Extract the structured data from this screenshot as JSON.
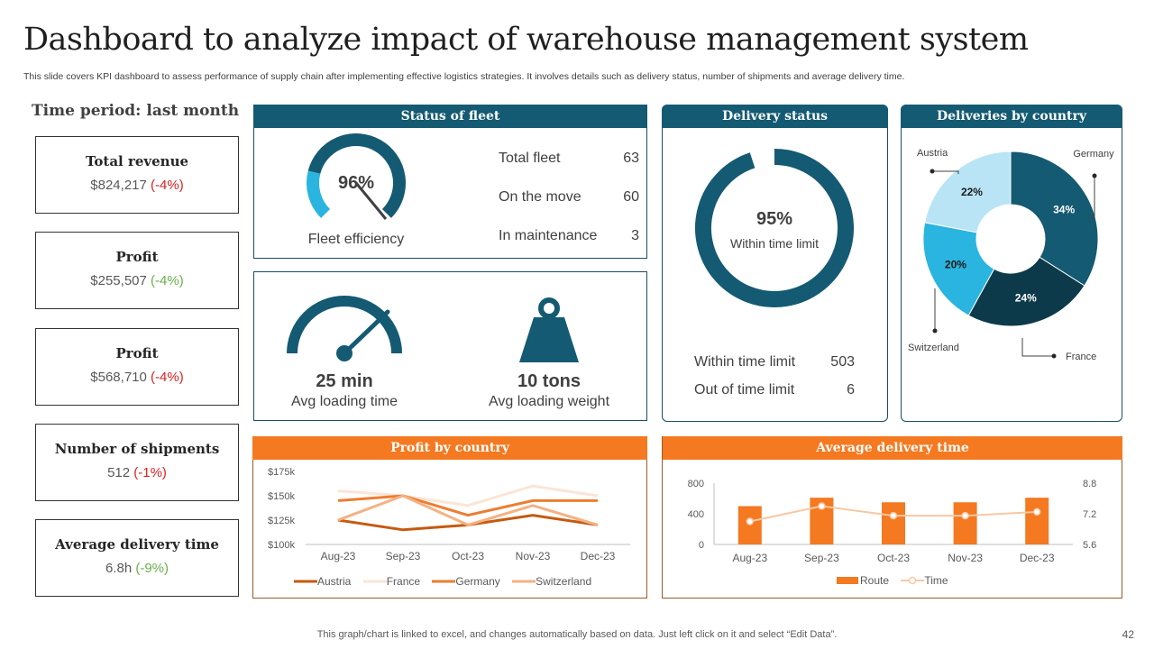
{
  "title": "Dashboard to analyze impact of warehouse management system",
  "subtitle": "This slide covers KPI dashboard to assess performance of supply chain after implementing effective logistics strategies. It involves details such as delivery status, number of shipments and average delivery time.",
  "period": "Time period: last month",
  "kpis": [
    {
      "label": "Total revenue",
      "value": "$824,217",
      "change": "(-4%)"
    },
    {
      "label": "Profit",
      "value": "$255,507",
      "change": "(-4%)"
    },
    {
      "label": "Profit",
      "value": "$568,710",
      "change": "(-4%)"
    },
    {
      "label": "Number of shipments",
      "value": "512",
      "change": "(-1%)"
    },
    {
      "label": "Average delivery time",
      "value": "6.8h",
      "change": "(-9%)"
    }
  ],
  "fleet": {
    "header": "Status of fleet",
    "efficiency_pct": "96%",
    "efficiency_value": 0.96,
    "efficiency_label": "Fleet efficiency",
    "rows": [
      {
        "label": "Total fleet",
        "value": "63"
      },
      {
        "label": "On the move",
        "value": "60"
      },
      {
        "label": "In maintenance",
        "value": "3"
      }
    ]
  },
  "loading": {
    "time_value": "25 min",
    "time_label": "Avg loading time",
    "weight_value": "10 tons",
    "weight_label": "Avg loading weight"
  },
  "delivery_status": {
    "header": "Delivery status",
    "pct": "95%",
    "pct_value": 0.95,
    "pct_label": "Within time limit",
    "rows": [
      {
        "label": "Within time limit",
        "value": "503"
      },
      {
        "label": "Out of time limit",
        "value": "6"
      }
    ]
  },
  "colors": {
    "navy": "#145a72",
    "dark_navy": "#0d3a4a",
    "sky": "#2ab4e0",
    "light_sky": "#b8e4f5",
    "orange": "#f47920",
    "peach": "#f7c8a4"
  },
  "chart_data": [
    {
      "type": "pie",
      "title": "Deliveries by country",
      "labels": [
        "Germany",
        "France",
        "Switzerland",
        "Austria"
      ],
      "values": [
        34,
        24,
        20,
        22
      ],
      "value_labels": [
        "34%",
        "24%",
        "20%",
        "22%"
      ],
      "donut": true
    },
    {
      "type": "line",
      "title": "Profit by country",
      "categories": [
        "Aug-23",
        "Sep-23",
        "Oct-23",
        "Nov-23",
        "Dec-23"
      ],
      "ylim": [
        100,
        175
      ],
      "yticks": [
        100,
        125,
        150,
        175
      ],
      "ytick_labels": [
        "$100k",
        "$125k",
        "$150k",
        "$175k"
      ],
      "series": [
        {
          "name": "Austria",
          "values": [
            125,
            115,
            120,
            130,
            120
          ],
          "color": "#c55a11"
        },
        {
          "name": "France",
          "values": [
            155,
            150,
            140,
            160,
            150
          ],
          "color": "#fbe5d6"
        },
        {
          "name": "Germany",
          "values": [
            145,
            150,
            130,
            145,
            145
          ],
          "color": "#ed7d31"
        },
        {
          "name": "Switzerland",
          "values": [
            125,
            150,
            120,
            140,
            120
          ],
          "color": "#f4b183"
        }
      ]
    },
    {
      "type": "bar",
      "title": "Average delivery time",
      "categories": [
        "Aug-23",
        "Sep-23",
        "Oct-23",
        "Nov-23",
        "Dec-23"
      ],
      "series": [
        {
          "name": "Route",
          "values": [
            500,
            610,
            550,
            550,
            610
          ],
          "axis": "left",
          "color": "#f47920"
        },
        {
          "name": "Time",
          "values": [
            6.8,
            7.6,
            7.1,
            7.1,
            7.3
          ],
          "axis": "right",
          "color": "#f7c8a4"
        }
      ],
      "ylim_left": [
        0,
        800
      ],
      "yticks_left": [
        "0",
        "400",
        "800"
      ],
      "ylim_right": [
        5.6,
        8.8
      ],
      "yticks_right": [
        "5.6",
        "7.2",
        "8.8"
      ]
    }
  ],
  "footer": "This graph/chart is linked to excel,  and changes automatically based on data. Just left click on it and select “Edit Data”.",
  "page_number": "42"
}
